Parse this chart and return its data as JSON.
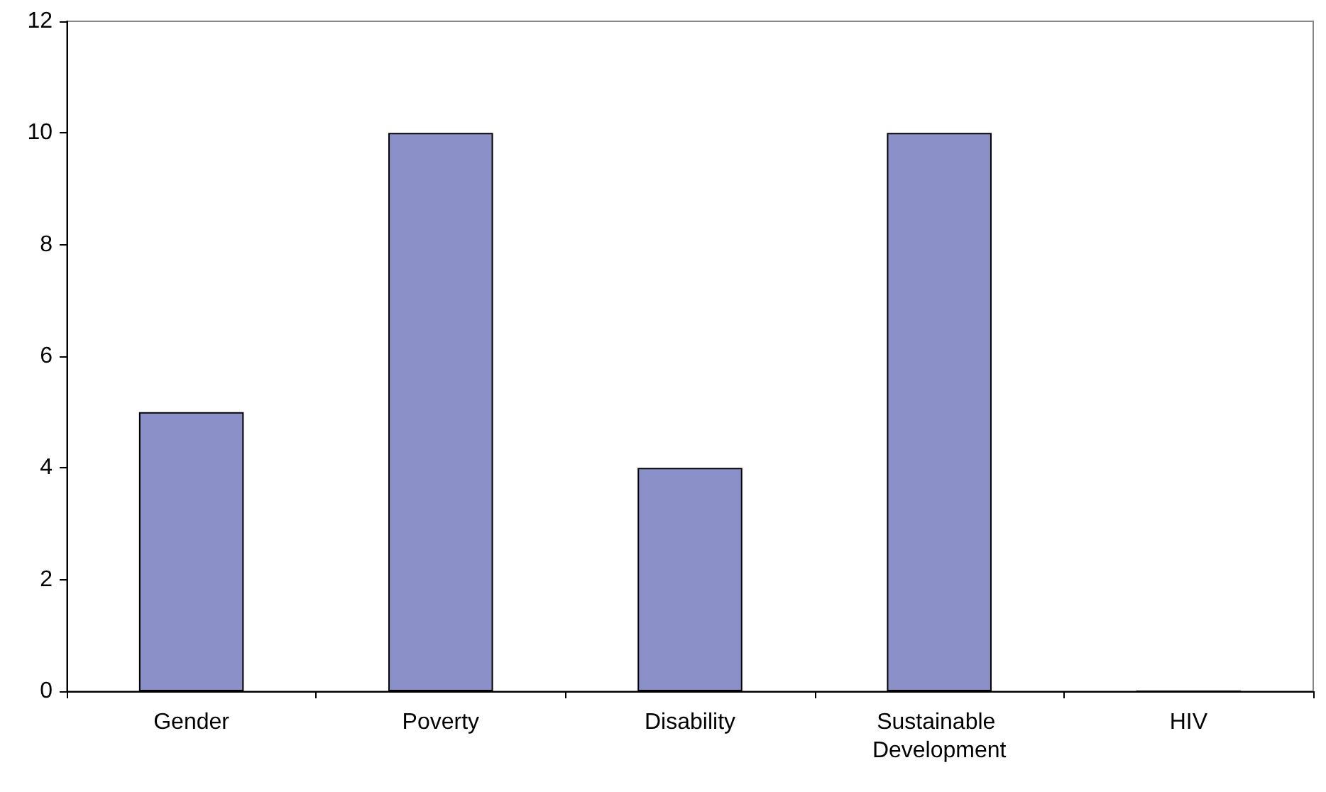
{
  "chart_data": {
    "type": "bar",
    "categories": [
      "Gender",
      "Poverty",
      "Disability",
      "Sustainable Development",
      "HIV"
    ],
    "values": [
      5,
      10,
      4,
      10,
      0
    ],
    "color": "#8b91c8",
    "ylim": [
      0,
      12
    ],
    "yticks": [
      0,
      2,
      4,
      6,
      8,
      10,
      12
    ],
    "grid": false
  }
}
